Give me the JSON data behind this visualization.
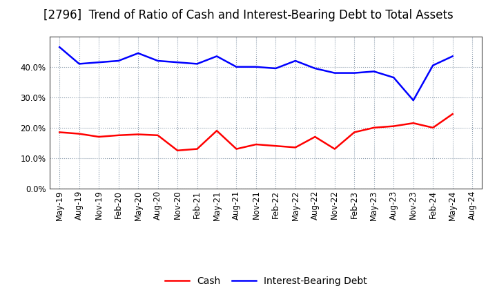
{
  "title": "[2796]  Trend of Ratio of Cash and Interest-Bearing Debt to Total Assets",
  "x_labels": [
    "May-19",
    "Aug-19",
    "Nov-19",
    "Feb-20",
    "May-20",
    "Aug-20",
    "Nov-20",
    "Feb-21",
    "May-21",
    "Aug-21",
    "Nov-21",
    "Feb-22",
    "May-22",
    "Aug-22",
    "Nov-22",
    "Feb-23",
    "May-23",
    "Aug-23",
    "Nov-23",
    "Feb-24",
    "May-24",
    "Aug-24"
  ],
  "cash": [
    18.5,
    18.0,
    17.0,
    17.5,
    17.8,
    17.5,
    12.5,
    13.0,
    19.0,
    13.0,
    14.5,
    14.0,
    13.5,
    17.0,
    13.0,
    18.5,
    20.0,
    20.5,
    21.5,
    20.0,
    24.5,
    null
  ],
  "debt": [
    46.5,
    41.0,
    41.5,
    42.0,
    44.5,
    42.0,
    41.5,
    41.0,
    43.5,
    40.0,
    40.0,
    39.5,
    42.0,
    39.5,
    38.0,
    38.0,
    38.5,
    36.5,
    29.0,
    40.5,
    43.5,
    null
  ],
  "cash_color": "#ff0000",
  "debt_color": "#0000ff",
  "background_color": "#ffffff",
  "grid_color": "#8899aa",
  "ylim": [
    0,
    50
  ],
  "yticks": [
    0,
    10,
    20,
    30,
    40
  ],
  "legend_cash": "Cash",
  "legend_debt": "Interest-Bearing Debt",
  "title_fontsize": 12,
  "tick_fontsize": 8.5,
  "legend_fontsize": 10,
  "line_width": 1.8
}
